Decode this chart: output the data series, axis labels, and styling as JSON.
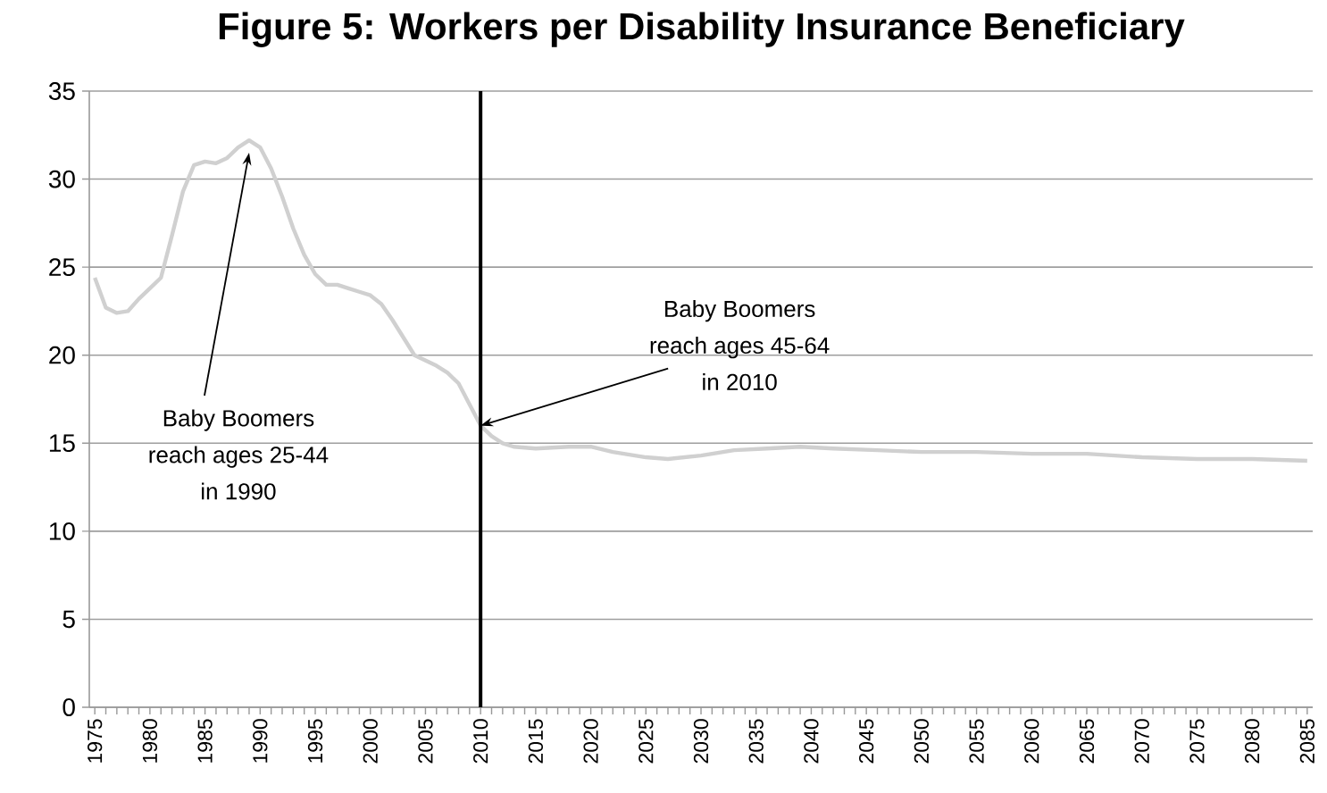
{
  "chart_data": {
    "type": "line",
    "title": "Figure 5: Workers per Disability Insurance Beneficiary",
    "x": [
      1975,
      1976,
      1977,
      1978,
      1979,
      1980,
      1981,
      1982,
      1983,
      1984,
      1985,
      1986,
      1987,
      1988,
      1989,
      1990,
      1991,
      1992,
      1993,
      1994,
      1995,
      1996,
      1997,
      1998,
      1999,
      2000,
      2001,
      2002,
      2003,
      2004,
      2005,
      2006,
      2007,
      2008,
      2009,
      2010,
      2011,
      2012,
      2013,
      2015,
      2018,
      2020,
      2022,
      2025,
      2027,
      2030,
      2033,
      2036,
      2039,
      2042,
      2046,
      2050,
      2055,
      2060,
      2065,
      2070,
      2075,
      2080,
      2085
    ],
    "series": [
      {
        "color": "#d0d0d0",
        "values": [
          24.4,
          22.7,
          22.4,
          22.5,
          23.2,
          23.8,
          24.4,
          26.8,
          29.3,
          30.8,
          31.0,
          30.9,
          31.2,
          31.8,
          32.2,
          31.8,
          30.6,
          29.0,
          27.2,
          25.7,
          24.6,
          24.0,
          24.0,
          23.8,
          23.6,
          23.4,
          22.9,
          22.0,
          21.0,
          20.0,
          19.7,
          19.4,
          19.0,
          18.4,
          17.2,
          16.0,
          15.4,
          15.0,
          14.8,
          14.7,
          14.8,
          14.8,
          14.5,
          14.2,
          14.1,
          14.3,
          14.6,
          14.7,
          14.8,
          14.7,
          14.6,
          14.5,
          14.5,
          14.4,
          14.4,
          14.2,
          14.1,
          14.1,
          14.0
        ]
      }
    ],
    "xlim": [
      1974.5,
      2085.5
    ],
    "xticks": [
      1975,
      1980,
      1985,
      1990,
      1995,
      2000,
      2005,
      2010,
      2015,
      2020,
      2025,
      2030,
      2035,
      2040,
      2045,
      2050,
      2055,
      2060,
      2065,
      2070,
      2075,
      2080,
      2085
    ],
    "ylim": [
      0,
      35
    ],
    "yticks": [
      0,
      5,
      10,
      15,
      20,
      25,
      30,
      35
    ],
    "grid": "y",
    "ref_lines": [
      {
        "axis": "x",
        "value": 2010,
        "color": "#000000"
      }
    ],
    "annotations": [
      {
        "text": "Baby Boomers reach ages 25-44 in 1990",
        "x": 1989,
        "y": 31.5
      },
      {
        "text": "Baby Boomers reach ages 45-64 in 2010",
        "x": 2010,
        "y": 16
      }
    ]
  }
}
